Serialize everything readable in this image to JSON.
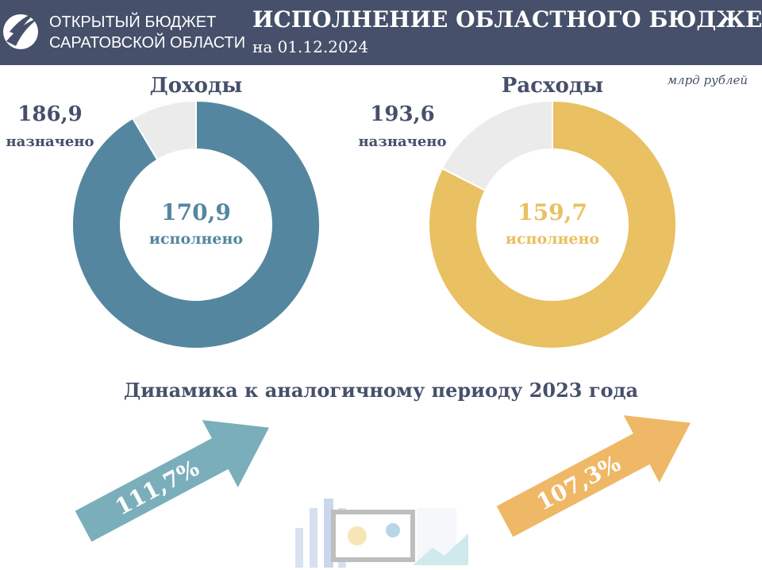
{
  "header": {
    "logo_line1": "ОТКРЫТЫЙ БЮДЖЕТ",
    "logo_line2": "САРАТОВСКОЙ ОБЛАСТИ",
    "title": "ИСПОЛНЕНИЕ ОБЛАСТНОГО БЮДЖЕТА",
    "subtitle": "на 01.12.2024"
  },
  "unit": "млрд рублей",
  "chart_data": [
    {
      "type": "donut",
      "title": "Доходы",
      "planned": {
        "value": 186.9,
        "label": "186,9"
      },
      "planned_caption": "назначено",
      "executed": {
        "value": 170.9,
        "label": "170,9"
      },
      "executed_caption": "исполнено",
      "color": "#54879f",
      "rest_color": "#ebebeb"
    },
    {
      "type": "donut",
      "title": "Расходы",
      "planned": {
        "value": 193.6,
        "label": "193,6"
      },
      "planned_caption": "назначено",
      "executed": {
        "value": 159.7,
        "label": "159,7"
      },
      "executed_caption": "исполнено",
      "color": "#e9c062",
      "rest_color": "#ebebeb"
    }
  ],
  "dynamics": {
    "title": "Динамика к аналогичному периоду 2023 года",
    "items": [
      {
        "value": 111.7,
        "label": "111,7%",
        "color": "#7aaebb"
      },
      {
        "value": 107.3,
        "label": "107,3%",
        "color": "#efb866"
      }
    ]
  }
}
